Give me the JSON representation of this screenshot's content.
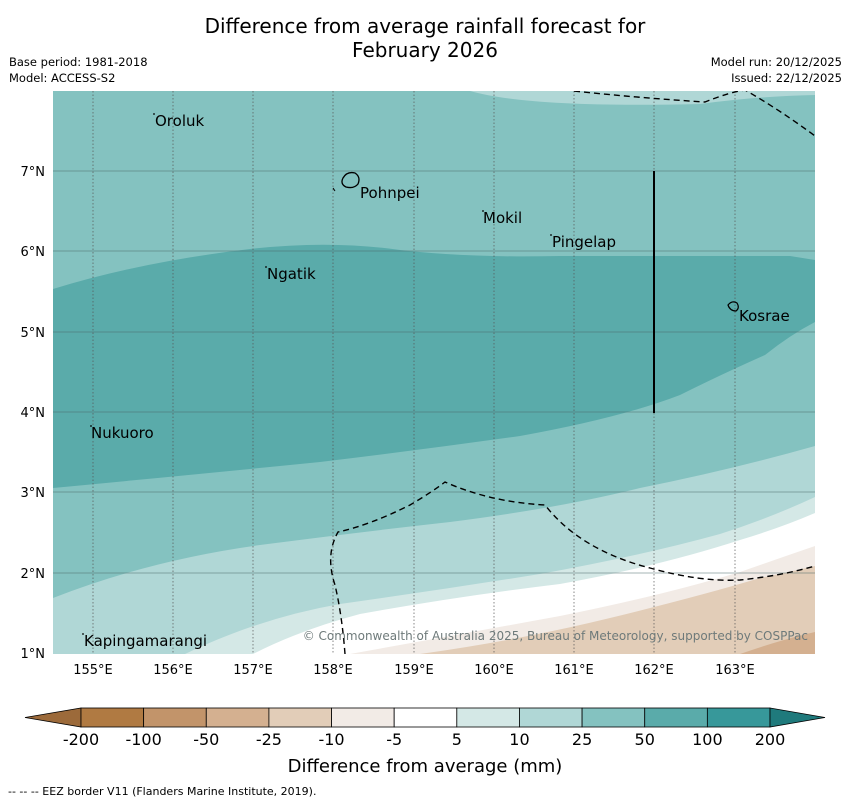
{
  "header": {
    "title_line1": "Difference from average rainfall forecast for",
    "title_line2": "February 2026",
    "base_period": "Base period: 1981-2018",
    "model": "Model: ACCESS-S2",
    "model_run": "Model run: 20/12/2025",
    "issued": "Issued: 22/12/2025"
  },
  "map": {
    "lat_labels": [
      "7°N",
      "6°N",
      "5°N",
      "4°N",
      "3°N",
      "2°N",
      "1°N"
    ],
    "lon_labels": [
      "155°E",
      "156°E",
      "157°E",
      "158°E",
      "159°E",
      "160°E",
      "161°E",
      "162°E",
      "163°E"
    ],
    "places": [
      {
        "name": "Oroluk"
      },
      {
        "name": "Pohnpei"
      },
      {
        "name": "Mokil"
      },
      {
        "name": "Pingelap"
      },
      {
        "name": "Ngatik"
      },
      {
        "name": "Kosrae"
      },
      {
        "name": "Nukuoro"
      },
      {
        "name": "Kapingamarangi"
      }
    ],
    "copyright": "© Commonwealth of Australia 2025, Bureau of Meteorology, supported by COSPPac"
  },
  "legend": {
    "ticks": [
      "-200",
      "-100",
      "-50",
      "-25",
      "-10",
      "-5",
      "5",
      "10",
      "25",
      "50",
      "100",
      "200"
    ],
    "colors": [
      "#9c6a3a",
      "#b07a42",
      "#c2946a",
      "#d4b090",
      "#e2cdb8",
      "#f2ebe6",
      "#ffffff",
      "#d4e8e6",
      "#b0d7d6",
      "#84c2c0",
      "#5aabaa",
      "#37989a",
      "#1f7a7c"
    ],
    "label": "Difference from average (mm)"
  },
  "footer": {
    "eez_note": "--  --  -- EEZ border V11 (Flanders Marine Institute, 2019)."
  }
}
